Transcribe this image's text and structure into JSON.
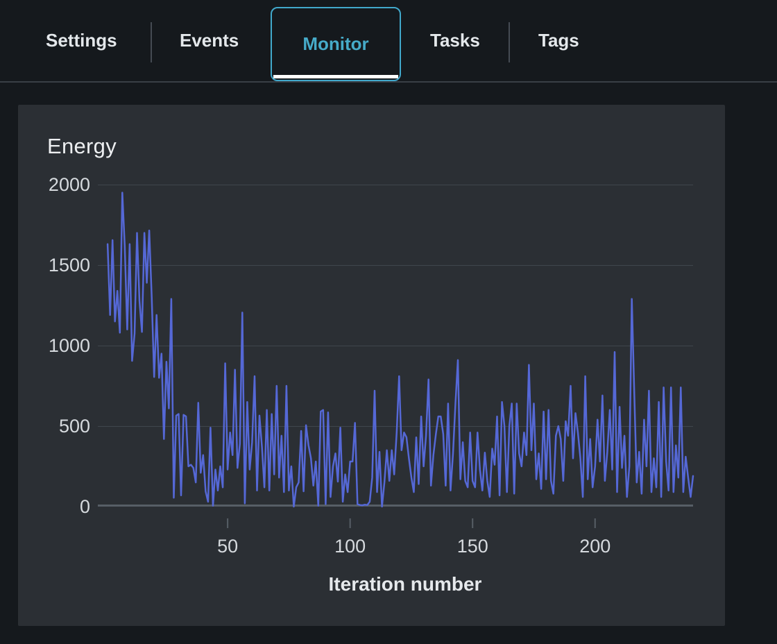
{
  "tabs": {
    "items": [
      {
        "label": "Settings",
        "active": false
      },
      {
        "label": "Events",
        "active": false
      },
      {
        "label": "Monitor",
        "active": true
      },
      {
        "label": "Tasks",
        "active": false
      },
      {
        "label": "Tags",
        "active": false
      }
    ],
    "active_color": "#46abc9",
    "inactive_color": "#e4e8eb"
  },
  "panel": {
    "title": "Energy"
  },
  "chart_data": {
    "type": "line",
    "title": "Energy",
    "xlabel": "Iteration number",
    "ylabel": "",
    "x_start": 1,
    "x_step": 1,
    "xticks": [
      50,
      100,
      150,
      200
    ],
    "yticks": [
      0,
      500,
      1000,
      1500,
      2000
    ],
    "xlim": [
      -3,
      240
    ],
    "ylim": [
      0,
      2000
    ],
    "grid": true,
    "legend": false,
    "line_color": "#5568d6",
    "gridline_color": "#40464d",
    "axis_color": "#575e66",
    "values": [
      1630,
      1190,
      1655,
      1150,
      1340,
      1080,
      1950,
      1620,
      1100,
      1630,
      905,
      1075,
      1700,
      1280,
      1085,
      1700,
      1390,
      1715,
      1300,
      805,
      1190,
      800,
      950,
      420,
      900,
      610,
      1290,
      55,
      565,
      575,
      70,
      570,
      560,
      250,
      260,
      240,
      150,
      645,
      210,
      320,
      95,
      30,
      490,
      5,
      230,
      100,
      250,
      120,
      890,
      230,
      460,
      320,
      850,
      240,
      390,
      1205,
      20,
      650,
      230,
      400,
      810,
      100,
      565,
      370,
      120,
      600,
      100,
      575,
      200,
      750,
      180,
      440,
      90,
      750,
      100,
      250,
      0,
      120,
      150,
      470,
      95,
      505,
      380,
      300,
      130,
      280,
      5,
      590,
      600,
      15,
      585,
      60,
      250,
      330,
      155,
      490,
      30,
      200,
      90,
      280,
      280,
      520,
      15,
      10,
      8,
      12,
      10,
      30,
      180,
      720,
      90,
      340,
      0,
      150,
      350,
      160,
      350,
      200,
      460,
      810,
      350,
      460,
      430,
      300,
      180,
      90,
      430,
      140,
      560,
      250,
      440,
      790,
      130,
      320,
      450,
      560,
      560,
      450,
      130,
      640,
      100,
      330,
      640,
      910,
      170,
      400,
      160,
      120,
      460,
      160,
      120,
      460,
      230,
      100,
      335,
      160,
      60,
      360,
      260,
      560,
      70,
      650,
      500,
      90,
      500,
      640,
      80,
      640,
      330,
      250,
      460,
      320,
      880,
      350,
      640,
      170,
      330,
      110,
      590,
      170,
      600,
      160,
      80,
      440,
      500,
      420,
      160,
      530,
      440,
      750,
      300,
      580,
      460,
      300,
      60,
      810,
      170,
      420,
      120,
      250,
      540,
      280,
      690,
      160,
      340,
      600,
      230,
      960,
      90,
      620,
      240,
      440,
      60,
      250,
      1290,
      700,
      150,
      340,
      80,
      540,
      250,
      720,
      90,
      300,
      120,
      650,
      60,
      740,
      280,
      100,
      740,
      90,
      380,
      180,
      740,
      90,
      310,
      180,
      60,
      190
    ]
  }
}
